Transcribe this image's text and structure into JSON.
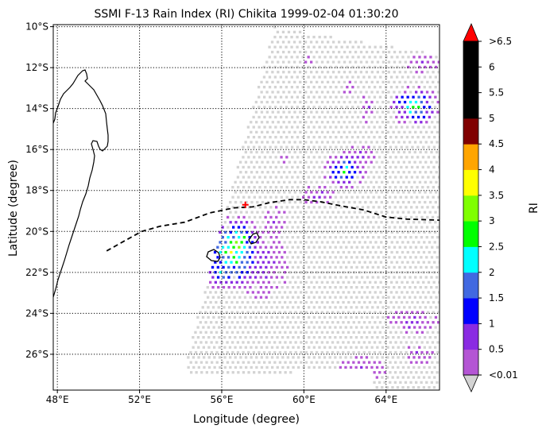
{
  "chart_data": {
    "type": "heatmap",
    "title": "SSMI F-13 Rain Index (RI) Chikita 1999-02-04 01:30:20",
    "xlabel": "Longitude (degree)",
    "ylabel": "Latitude (degree)",
    "xlim": [
      47.8,
      66.6
    ],
    "ylim": [
      -27.75,
      -9.9
    ],
    "xticks": [
      {
        "value": 48,
        "label": "48°E"
      },
      {
        "value": 52,
        "label": "52°E"
      },
      {
        "value": 56,
        "label": "56°E"
      },
      {
        "value": 60,
        "label": "60°E"
      },
      {
        "value": 64,
        "label": "64°E"
      }
    ],
    "yticks": [
      {
        "value": -10,
        "label": "10°S"
      },
      {
        "value": -12,
        "label": "12°S"
      },
      {
        "value": -14,
        "label": "14°S"
      },
      {
        "value": -16,
        "label": "16°S"
      },
      {
        "value": -18,
        "label": "18°S"
      },
      {
        "value": -20,
        "label": "20°S"
      },
      {
        "value": -22,
        "label": "22°S"
      },
      {
        "value": -24,
        "label": "24°S"
      },
      {
        "value": -26,
        "label": "26°S"
      }
    ],
    "grid": true,
    "grid_style": "dotted",
    "colorbar": {
      "label": "RI",
      "boundaries": [
        0.01,
        0.5,
        1,
        1.5,
        2,
        2.5,
        3,
        3.5,
        4,
        4.5,
        5,
        5.5,
        6,
        6.5
      ],
      "colors": [
        "#b455d4",
        "#8a2be2",
        "#0000ff",
        "#4169e1",
        "#00ffff",
        "#00ff00",
        "#7fff00",
        "#ffff00",
        "#ffa500",
        "#800000",
        "#000000",
        "#000000",
        "#000000"
      ],
      "under_color": "#d3d3d3",
      "over_color": "#ff0000",
      "ticks": [
        {
          "value": 0.01,
          "label": "<0.01"
        },
        {
          "value": 0.5,
          "label": "0.5"
        },
        {
          "value": 1,
          "label": "1"
        },
        {
          "value": 1.5,
          "label": "1.5"
        },
        {
          "value": 2,
          "label": "2"
        },
        {
          "value": 2.5,
          "label": "2.5"
        },
        {
          "value": 3,
          "label": "3"
        },
        {
          "value": 3.5,
          "label": "3.5"
        },
        {
          "value": 4,
          "label": "4"
        },
        {
          "value": 4.5,
          "label": "4.5"
        },
        {
          "value": 5,
          "label": "5"
        },
        {
          "value": 5.5,
          "label": "5.5"
        },
        {
          "value": 6,
          "label": "6"
        },
        {
          "value": 6.5,
          "label": ">6.5"
        }
      ]
    },
    "storm_track": [
      [
        50.4,
        -20.95
      ],
      [
        51.2,
        -20.5
      ],
      [
        52.1,
        -20.0
      ],
      [
        53.0,
        -19.75
      ],
      [
        54.2,
        -19.55
      ],
      [
        55.4,
        -19.1
      ],
      [
        56.6,
        -18.85
      ],
      [
        57.5,
        -18.8
      ],
      [
        58.3,
        -18.6
      ],
      [
        59.3,
        -18.45
      ],
      [
        60.0,
        -18.45
      ],
      [
        60.8,
        -18.55
      ],
      [
        61.8,
        -18.75
      ],
      [
        62.9,
        -18.95
      ],
      [
        64.0,
        -19.3
      ],
      [
        65.0,
        -19.4
      ],
      [
        66.6,
        -19.45
      ]
    ],
    "storm_position": [
      57.15,
      -18.7
    ],
    "storm_position_color": "#ff0000",
    "rain_cells": [
      {
        "lon": 56.6,
        "lat": -21.0,
        "rx": 1.5,
        "ry": 1.9,
        "peak": 3.4
      },
      {
        "lon": 56.9,
        "lat": -20.3,
        "rx": 0.7,
        "ry": 0.8,
        "peak": 3.2
      },
      {
        "lon": 56.0,
        "lat": -22.0,
        "rx": 0.9,
        "ry": 0.9,
        "peak": 2.3
      },
      {
        "lon": 57.9,
        "lat": -21.6,
        "rx": 1.4,
        "ry": 1.7,
        "peak": 0.9
      },
      {
        "lon": 55.8,
        "lat": -19.8,
        "rx": 0.7,
        "ry": 0.7,
        "peak": 1.3
      },
      {
        "lon": 62.0,
        "lat": -17.0,
        "rx": 1.1,
        "ry": 0.9,
        "peak": 2.4
      },
      {
        "lon": 62.8,
        "lat": -16.3,
        "rx": 0.7,
        "ry": 0.6,
        "peak": 0.9
      },
      {
        "lon": 65.4,
        "lat": -13.9,
        "rx": 1.3,
        "ry": 1.0,
        "peak": 2.6
      },
      {
        "lon": 63.1,
        "lat": -14.0,
        "rx": 0.4,
        "ry": 0.7,
        "peak": 0.8
      },
      {
        "lon": 62.2,
        "lat": -13.0,
        "rx": 0.3,
        "ry": 0.4,
        "peak": 0.7
      },
      {
        "lon": 60.7,
        "lat": -18.2,
        "rx": 0.8,
        "ry": 0.6,
        "peak": 0.8
      },
      {
        "lon": 65.3,
        "lat": -24.4,
        "rx": 1.3,
        "ry": 0.6,
        "peak": 0.9
      },
      {
        "lon": 62.8,
        "lat": -26.7,
        "rx": 1.3,
        "ry": 0.6,
        "peak": 0.7
      },
      {
        "lon": 65.6,
        "lat": -26.0,
        "rx": 0.7,
        "ry": 0.5,
        "peak": 0.6
      },
      {
        "lon": 60.5,
        "lat": -27.4,
        "rx": 1.0,
        "ry": 0.5,
        "peak": 0.7
      },
      {
        "lon": 65.8,
        "lat": -11.8,
        "rx": 0.8,
        "ry": 0.5,
        "peak": 0.6
      },
      {
        "lon": 58.6,
        "lat": -19.5,
        "rx": 0.6,
        "ry": 0.7,
        "peak": 0.7
      },
      {
        "lon": 59.0,
        "lat": -16.5,
        "rx": 0.3,
        "ry": 0.3,
        "peak": 0.6
      },
      {
        "lon": 61.8,
        "lat": -10.0,
        "rx": 0.5,
        "ry": 0.3,
        "peak": 0.6
      },
      {
        "lon": 60.3,
        "lat": -11.6,
        "rx": 0.3,
        "ry": 0.3,
        "peak": 0.6
      }
    ]
  }
}
